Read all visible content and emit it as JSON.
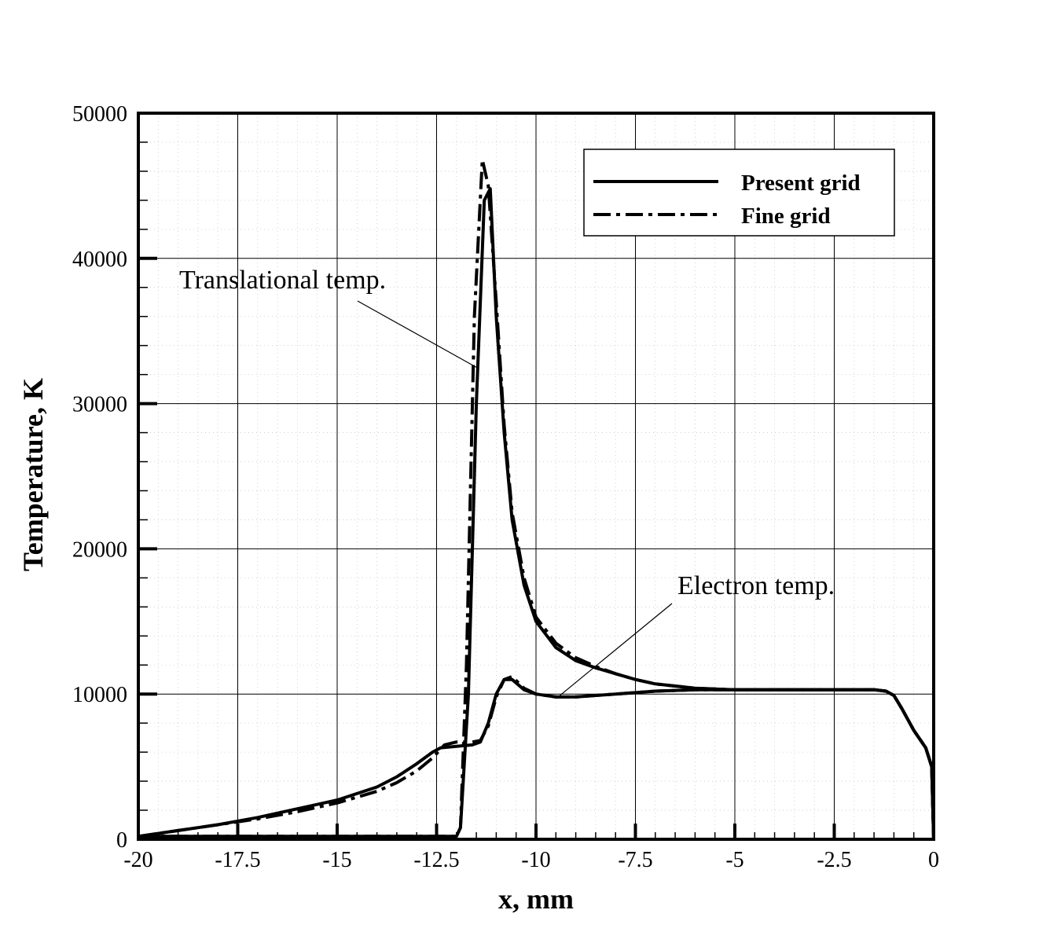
{
  "chart_data": {
    "type": "line",
    "xlabel": "x, mm",
    "ylabel": "Temperature, K",
    "xlim": [
      -20,
      0
    ],
    "ylim": [
      0,
      50000
    ],
    "x_ticks": [
      -20,
      -17.5,
      -15,
      -12.5,
      -10,
      -7.5,
      -5,
      -2.5,
      0
    ],
    "x_tick_labels": [
      "-20",
      "-17.5",
      "-15",
      "-12.5",
      "-10",
      "-7.5",
      "-5",
      "-2.5",
      "0"
    ],
    "y_ticks": [
      0,
      10000,
      20000,
      30000,
      40000,
      50000
    ],
    "y_tick_labels": [
      "0",
      "10000",
      "20000",
      "30000",
      "40000",
      "50000"
    ],
    "grid": true,
    "legend_position": "top-right",
    "legend": [
      {
        "label": "Present grid",
        "style": "solid"
      },
      {
        "label": "Fine grid",
        "style": "dashdot"
      }
    ],
    "annotations": [
      {
        "text": "Translational temp.",
        "points_to": [
          -11.5,
          32500
        ]
      },
      {
        "text": "Electron temp.",
        "points_to": [
          -9.4,
          9900
        ]
      }
    ],
    "series": [
      {
        "name": "Present grid",
        "style": "solid",
        "curve": "Translational temp.",
        "x": [
          -20,
          -15,
          -12.5,
          -12.0,
          -11.9,
          -11.7,
          -11.5,
          -11.3,
          -11.15,
          -11.0,
          -10.8,
          -10.6,
          -10.3,
          -10.0,
          -9.5,
          -9.0,
          -8.5,
          -8.0,
          -7.5,
          -7.0,
          -6.0,
          -5.0,
          -4.0,
          -3.0,
          -2.0,
          -1.5,
          -1.2,
          -1.0,
          -0.8,
          -0.5,
          -0.2,
          -0.05,
          0
        ],
        "y": [
          200,
          200,
          200,
          200,
          800,
          10000,
          30000,
          44000,
          44800,
          36000,
          28000,
          22000,
          17500,
          15000,
          13200,
          12300,
          11800,
          11400,
          11000,
          10700,
          10400,
          10300,
          10300,
          10300,
          10300,
          10300,
          10200,
          9900,
          9000,
          7500,
          6300,
          5000,
          0
        ]
      },
      {
        "name": "Present grid",
        "style": "solid",
        "curve": "Electron temp.",
        "x": [
          -20,
          -19.0,
          -18.0,
          -17.0,
          -16.0,
          -15.0,
          -14.0,
          -13.5,
          -13.0,
          -12.6,
          -12.4,
          -12.0,
          -11.6,
          -11.4,
          -11.2,
          -11.0,
          -10.8,
          -10.6,
          -10.3,
          -10.0,
          -9.5,
          -9.0,
          -8.5,
          -8.0,
          -7.5,
          -7.0,
          -6.0,
          -5.0,
          -4.0,
          -3.0,
          -2.0,
          -1.5,
          -1.2,
          -1.0,
          -0.8,
          -0.5,
          -0.2,
          -0.05,
          0
        ],
        "y": [
          200,
          600,
          1000,
          1500,
          2100,
          2700,
          3600,
          4300,
          5200,
          6000,
          6300,
          6400,
          6500,
          6700,
          8000,
          10000,
          11000,
          11000,
          10300,
          10000,
          9800,
          9800,
          9900,
          10000,
          10100,
          10200,
          10300,
          10300,
          10300,
          10300,
          10300,
          10300,
          10200,
          9900,
          9000,
          7500,
          6300,
          5000,
          0
        ]
      },
      {
        "name": "Fine grid",
        "style": "dashdot",
        "curve": "Translational temp.",
        "x": [
          -20,
          -15,
          -12.5,
          -12.0,
          -11.9,
          -11.75,
          -11.55,
          -11.35,
          -11.2,
          -11.0,
          -10.8,
          -10.6,
          -10.3,
          -10.0,
          -9.5,
          -9.0,
          -8.5,
          -8.0,
          -7.5,
          -7.0,
          -6.0,
          -5.0,
          -4.0,
          -3.0,
          -2.0,
          -1.5,
          -1.2,
          -1.0,
          -0.8,
          -0.5,
          -0.2,
          -0.05,
          0
        ],
        "y": [
          200,
          200,
          200,
          200,
          800,
          12000,
          36000,
          46800,
          45000,
          37000,
          28500,
          22500,
          18000,
          15300,
          13500,
          12500,
          11900,
          11400,
          11000,
          10700,
          10400,
          10300,
          10300,
          10300,
          10300,
          10300,
          10200,
          9900,
          9000,
          7500,
          6300,
          5000,
          0
        ]
      },
      {
        "name": "Fine grid",
        "style": "dashdot",
        "curve": "Electron temp.",
        "x": [
          -20,
          -19.0,
          -18.0,
          -17.0,
          -16.0,
          -15.0,
          -14.0,
          -13.5,
          -13.0,
          -12.6,
          -12.3,
          -12.0,
          -11.6,
          -11.4,
          -11.2,
          -11.0,
          -10.8,
          -10.6,
          -10.3,
          -10.0,
          -9.5,
          -9.0,
          -8.5,
          -8.0,
          -7.5,
          -7.0,
          -6.0,
          -5.0,
          -4.0,
          -3.0,
          -2.0,
          -1.5,
          -1.2,
          -1.0,
          -0.8,
          -0.5,
          -0.2,
          -0.05,
          0
        ],
        "y": [
          200,
          600,
          1000,
          1400,
          1900,
          2500,
          3300,
          3900,
          4700,
          5600,
          6500,
          6700,
          6700,
          6800,
          7800,
          9800,
          11000,
          11200,
          10400,
          10000,
          9800,
          9800,
          9900,
          10000,
          10100,
          10200,
          10300,
          10300,
          10300,
          10300,
          10300,
          10300,
          10200,
          9900,
          9000,
          7500,
          6300,
          5000,
          0
        ]
      }
    ]
  }
}
